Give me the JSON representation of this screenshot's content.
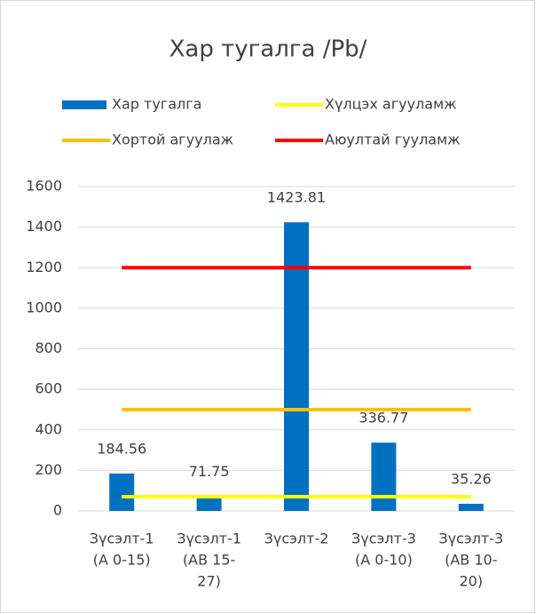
{
  "chart_data": {
    "type": "bar",
    "title": "Хар тугалга /Pb/",
    "categories": [
      [
        "Зүсэлт-1",
        "(A 0-15)"
      ],
      [
        "Зүсэлт-1",
        "(AB 15-",
        "27)"
      ],
      [
        "Зүсэлт-2"
      ],
      [
        "Зүсэлт-3",
        "(A 0-10)"
      ],
      [
        "Зүсэлт-3",
        "(AB 10-",
        "20)"
      ]
    ],
    "series": [
      {
        "name": "Хар тугалга",
        "type": "bar",
        "color": "#0070c0",
        "values": [
          184.56,
          71.75,
          1423.81,
          336.77,
          35.26
        ]
      },
      {
        "name": "Хүлцэх агууламж",
        "type": "line",
        "color": "#ffff00",
        "values": [
          70,
          70,
          70,
          70,
          70
        ]
      },
      {
        "name": "Хортой агуулаж",
        "type": "line",
        "color": "#ffc000",
        "values": [
          500,
          500,
          500,
          500,
          500
        ]
      },
      {
        "name": "Аюултай гууламж",
        "type": "line",
        "color": "#ff0000",
        "values": [
          1200,
          1200,
          1200,
          1200,
          1200
        ]
      }
    ],
    "ylim": [
      0,
      1600
    ],
    "yticks": [
      0,
      200,
      400,
      600,
      800,
      1000,
      1200,
      1400,
      1600
    ],
    "grid": true,
    "legend": "top"
  }
}
